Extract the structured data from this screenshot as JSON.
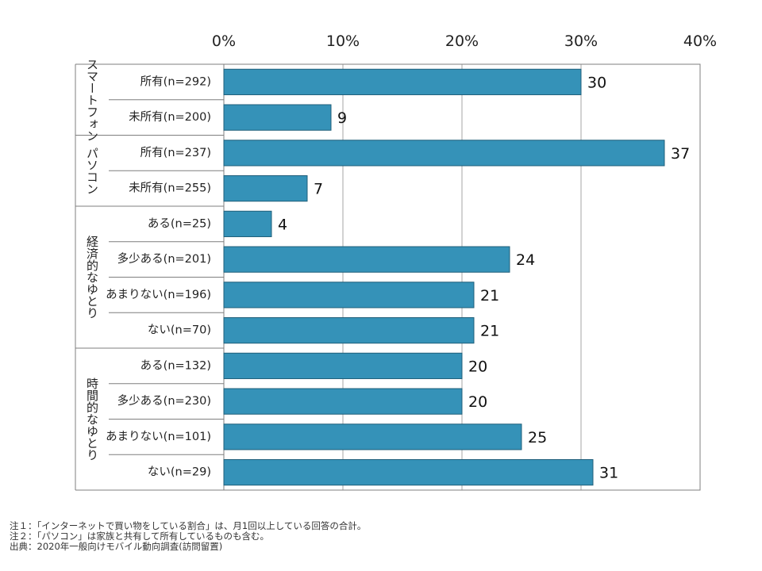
{
  "chart_data": {
    "type": "bar",
    "orientation": "horizontal",
    "x_ticks": [
      "0%",
      "10%",
      "20%",
      "30%",
      "40%"
    ],
    "xlim": [
      0,
      40
    ],
    "grid": true,
    "bar_color": "#3592b8",
    "groups": [
      {
        "name": "スマートフォン",
        "items": [
          {
            "label": "所有(n=292)",
            "value": 30
          },
          {
            "label": "未所有(n=200)",
            "value": 9
          }
        ]
      },
      {
        "name": "パソコン",
        "items": [
          {
            "label": "所有(n=237)",
            "value": 37
          },
          {
            "label": "未所有(n=255)",
            "value": 7
          }
        ]
      },
      {
        "name": "経済的なゆとり",
        "items": [
          {
            "label": "ある(n=25)",
            "value": 4
          },
          {
            "label": "多少ある(n=201)",
            "value": 24
          },
          {
            "label": "あまりない(n=196)",
            "value": 21
          },
          {
            "label": "ない(n=70)",
            "value": 21
          }
        ]
      },
      {
        "name": "時間的なゆとり",
        "items": [
          {
            "label": "ある(n=132)",
            "value": 20
          },
          {
            "label": "多少ある(n=230)",
            "value": 20
          },
          {
            "label": "あまりない(n=101)",
            "value": 25
          },
          {
            "label": "ない(n=29)",
            "value": 31
          }
        ]
      }
    ]
  },
  "notes": [
    "注１：「インターネットで買い物をしている割合」は、月1回以上している回答の合計。",
    "注２：「パソコン」は家族と共有して所有しているものも含む。",
    "出典：2020年一般向けモバイル動向調査(訪問留置)"
  ]
}
